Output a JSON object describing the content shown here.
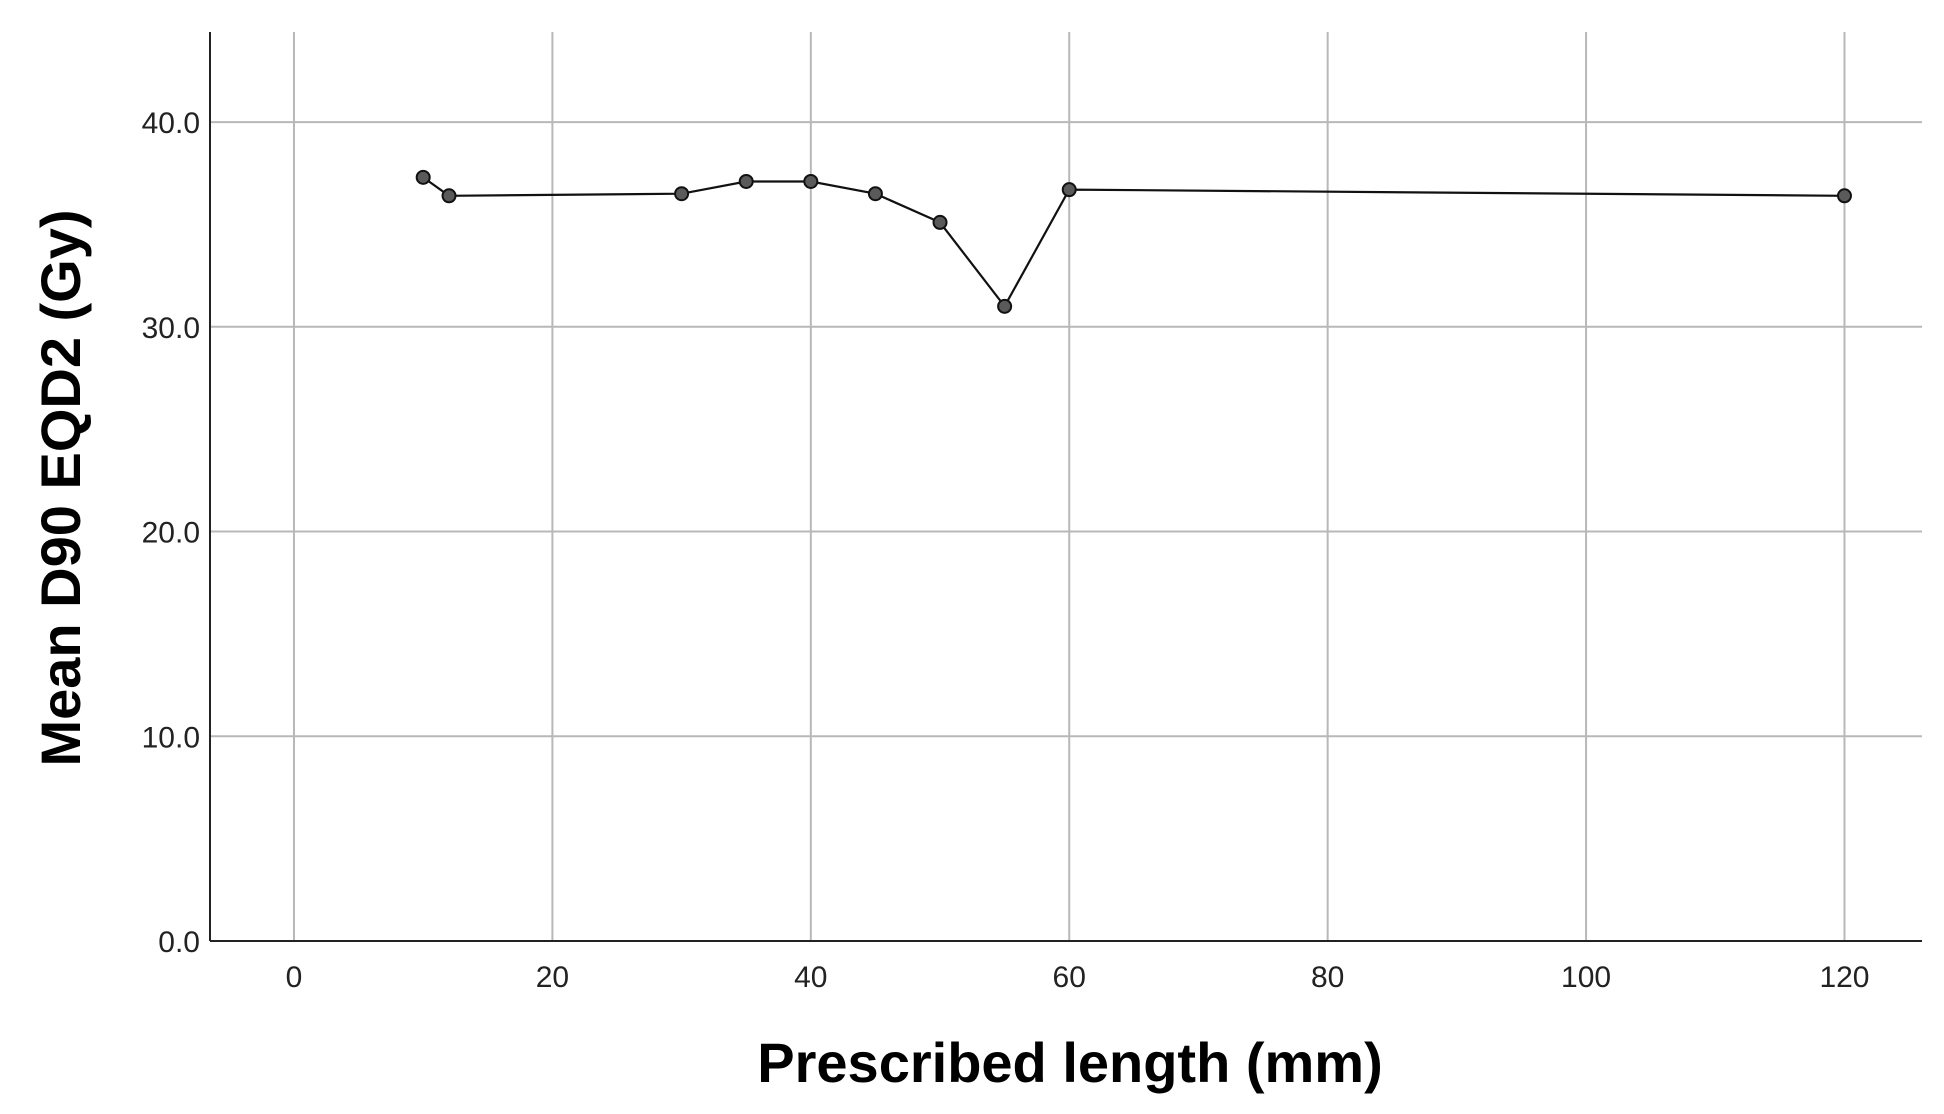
{
  "chart_data": {
    "type": "line",
    "xlabel": "Prescribed length (mm)",
    "ylabel": "Mean D90 EQD2 (Gy)",
    "xlim": [
      -6.5,
      126
    ],
    "ylim": [
      0,
      44.4
    ],
    "xticks": [
      0,
      20,
      40,
      60,
      80,
      100,
      120
    ],
    "xtick_labels": [
      "0",
      "20",
      "40",
      "60",
      "80",
      "100",
      "120"
    ],
    "yticks": [
      0,
      10,
      20,
      30,
      40
    ],
    "ytick_labels": [
      "0.0",
      "10.0",
      "20.0",
      "30.0",
      "40.0"
    ],
    "grid": true,
    "series": [
      {
        "x": [
          10,
          12,
          30,
          35,
          40,
          45,
          50,
          55,
          60,
          120
        ],
        "y": [
          37.3,
          36.4,
          36.5,
          37.1,
          37.1,
          36.5,
          35.1,
          31.0,
          36.7,
          36.4
        ]
      }
    ]
  },
  "colors": {
    "grid": "#b8b8b8",
    "axis": "#222222",
    "line": "#111111",
    "marker_fill": "#5a5a5a"
  }
}
